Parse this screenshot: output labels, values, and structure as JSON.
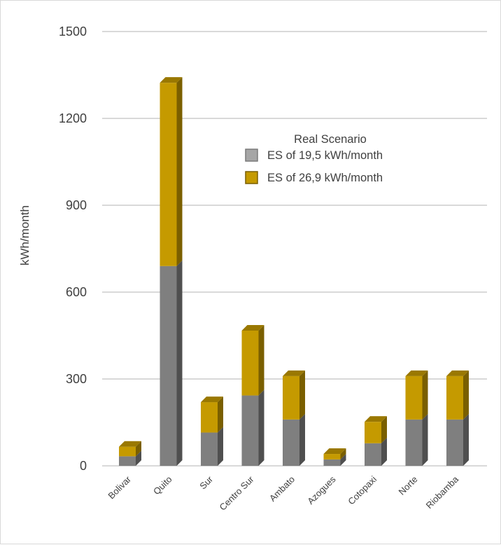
{
  "chart_data": {
    "type": "bar",
    "stacked": true,
    "three_d": true,
    "categories": [
      "Bolivar",
      "Quito",
      "Sur",
      "Centro Sur",
      "Ambato",
      "Azogues",
      "Cotopaxi",
      "Norte",
      "Riobamba"
    ],
    "series": [
      {
        "name": "ES of 19,5 kWh/month",
        "color": "#7f7f7f",
        "values": [
          33,
          690,
          115,
          243,
          160,
          22,
          78,
          160,
          160
        ]
      },
      {
        "name": "ES of 26,9 kWh/month",
        "color": "#c59a00",
        "values": [
          33,
          633,
          105,
          224,
          150,
          19,
          74,
          150,
          150
        ]
      }
    ],
    "ylabel": "kWh/month",
    "xlabel": "",
    "ylim": [
      0,
      1500
    ],
    "yticks": [
      0,
      300,
      600,
      900,
      1200,
      1500
    ],
    "legend_title": "Real Scenario",
    "legend_position": "upper-middle",
    "grid": true
  }
}
